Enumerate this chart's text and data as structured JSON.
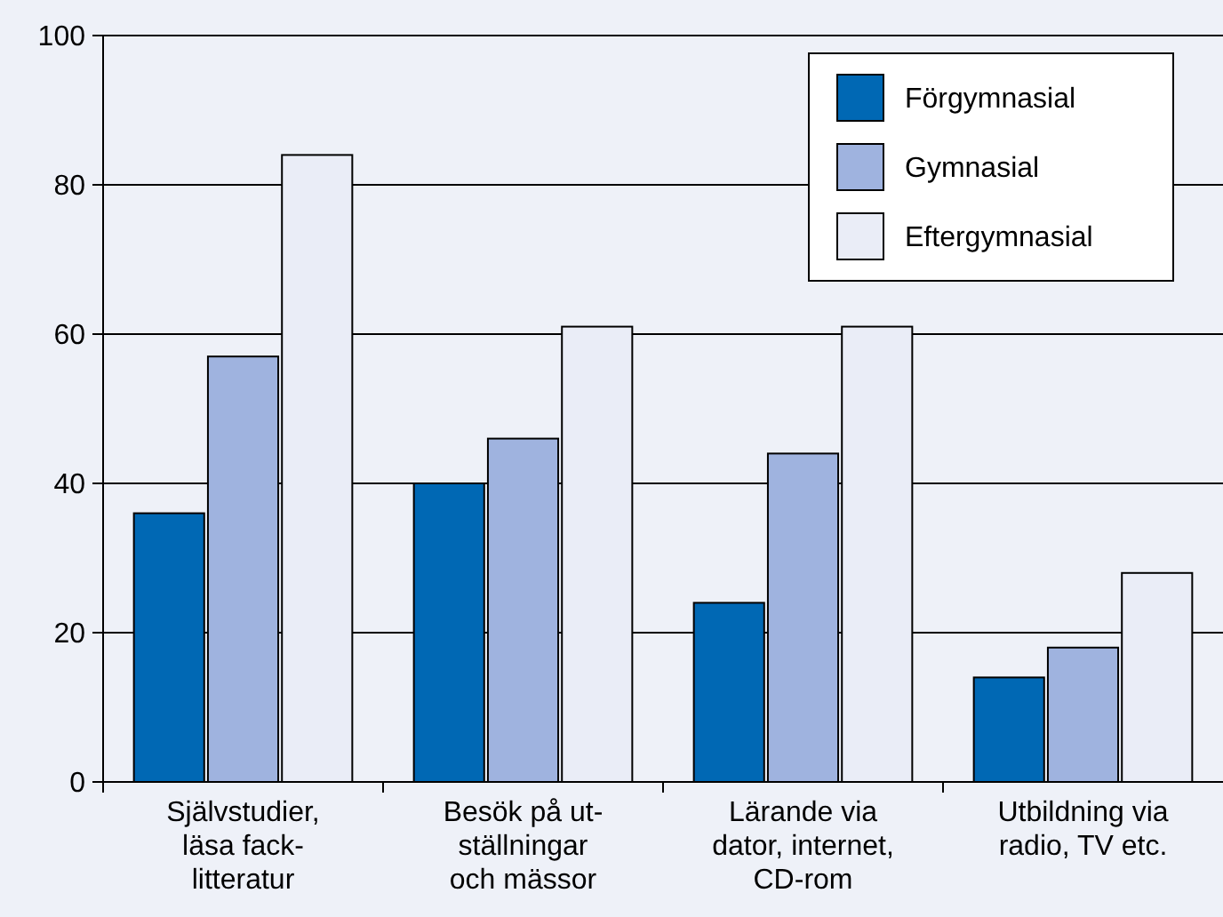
{
  "chart_data": {
    "type": "bar",
    "categories": [
      "Självstudier,\nläsa fack-\nlitteratur",
      "Besök på ut-\nställningar\noch mässor",
      "Lärande via\ndator, internet,\nCD-rom",
      "Utbildning via\nradio, TV etc."
    ],
    "series": [
      {
        "name": "Förgymnasial",
        "color": "#0068b4",
        "values": [
          36,
          40,
          24,
          14
        ]
      },
      {
        "name": "Gymnasial",
        "color": "#9fb3df",
        "values": [
          57,
          46,
          44,
          18
        ]
      },
      {
        "name": "Eftergymnasial",
        "color": "#eaedf7",
        "values": [
          84,
          61,
          61,
          28
        ]
      }
    ],
    "ylim": [
      0,
      100
    ],
    "yticks": [
      0,
      20,
      40,
      60,
      80,
      100
    ],
    "grid": "y",
    "legend": "top right"
  }
}
